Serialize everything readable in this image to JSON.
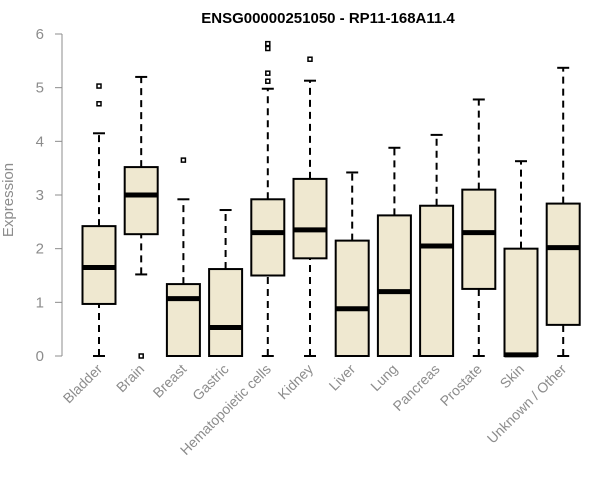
{
  "chart_data": {
    "type": "box",
    "title": "ENSG00000251050 - RP11-168A11.4",
    "xlabel": "",
    "ylabel": "Expression",
    "ylim": [
      0,
      6
    ],
    "yticks": [
      "0",
      "1",
      "2",
      "3",
      "4",
      "5",
      "6"
    ],
    "box_fill": "#efe8d0",
    "categories": [
      "Bladder",
      "Brain",
      "Breast",
      "Gastric",
      "Hematopoietic cells",
      "Kidney",
      "Liver",
      "Lung",
      "Pancreas",
      "Prostate",
      "Skin",
      "Unknown / Other"
    ],
    "boxes": [
      {
        "min": 0,
        "q1": 0.97,
        "median": 1.65,
        "q3": 2.42,
        "max": 4.15,
        "outliers": [
          4.7,
          5.03
        ]
      },
      {
        "min": 1.52,
        "q1": 2.27,
        "median": 3.0,
        "q3": 3.52,
        "max": 5.2,
        "outliers": [
          0
        ]
      },
      {
        "min": 0,
        "q1": 0,
        "median": 1.07,
        "q3": 1.34,
        "max": 2.92,
        "outliers": [
          3.65
        ]
      },
      {
        "min": 0,
        "q1": 0,
        "median": 0.53,
        "q3": 1.62,
        "max": 2.72,
        "outliers": []
      },
      {
        "min": 0,
        "q1": 1.5,
        "median": 2.3,
        "q3": 2.92,
        "max": 4.98,
        "outliers": [
          5.12,
          5.27,
          5.73,
          5.82
        ]
      },
      {
        "min": 0,
        "q1": 1.82,
        "median": 2.35,
        "q3": 3.3,
        "max": 5.13,
        "outliers": [
          5.53
        ]
      },
      {
        "min": 0,
        "q1": 0,
        "median": 0.88,
        "q3": 2.15,
        "max": 3.42,
        "outliers": []
      },
      {
        "min": 0,
        "q1": 0,
        "median": 1.2,
        "q3": 2.62,
        "max": 3.88,
        "outliers": []
      },
      {
        "min": 0,
        "q1": 0,
        "median": 2.05,
        "q3": 2.8,
        "max": 4.12,
        "outliers": []
      },
      {
        "min": 0,
        "q1": 1.25,
        "median": 2.3,
        "q3": 3.1,
        "max": 4.78,
        "outliers": []
      },
      {
        "min": 0,
        "q1": 0,
        "median": 0.02,
        "q3": 2.0,
        "max": 3.63,
        "outliers": []
      },
      {
        "min": 0,
        "q1": 0.58,
        "median": 2.02,
        "q3": 2.84,
        "max": 5.37,
        "outliers": []
      }
    ]
  }
}
